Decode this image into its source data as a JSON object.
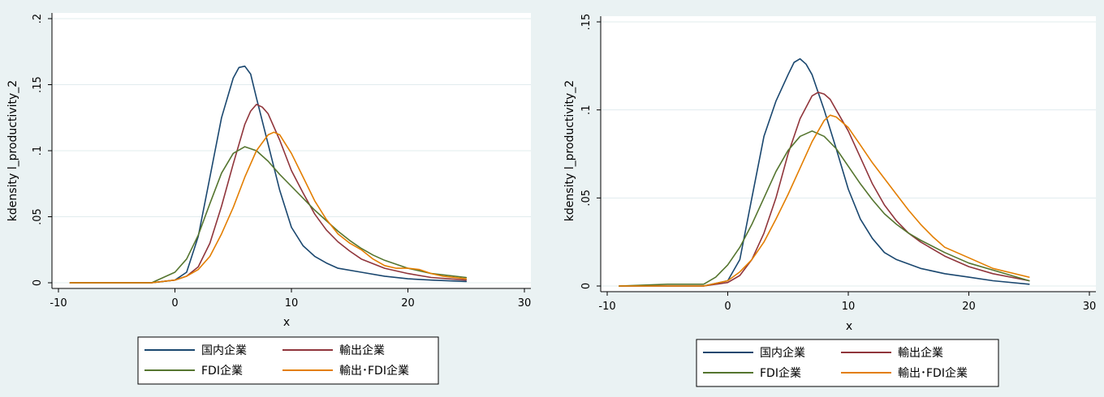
{
  "colors": {
    "background": "#eaf2f3",
    "plot_bg": "#ffffff",
    "grid": "#e1ecee",
    "domestic": "#1a476f",
    "export": "#90353b",
    "fdi": "#55752f",
    "export_fdi": "#e37e00"
  },
  "chart_data": [
    {
      "type": "line",
      "ylabel": "kdensity l_productivity_2",
      "xlabel": "x",
      "xlim": [
        -10,
        30
      ],
      "ylim": [
        0,
        0.2
      ],
      "xticks": [
        -10,
        0,
        10,
        20,
        30
      ],
      "xtick_labels": [
        "-10",
        "0",
        "10",
        "20",
        "30"
      ],
      "yticks": [
        0,
        0.05,
        0.1,
        0.15,
        0.2
      ],
      "ytick_labels": [
        "0",
        ".05",
        ".1",
        ".15",
        ".2"
      ],
      "legend_placement": "bottom",
      "series": [
        {
          "name": "国内企業",
          "key": "domestic",
          "x": [
            -9,
            -2,
            0,
            1,
            2,
            3,
            4,
            5,
            5.5,
            6,
            6.5,
            7,
            8,
            9,
            10,
            11,
            12,
            13,
            14,
            16,
            18,
            20,
            22,
            25
          ],
          "y": [
            0,
            0,
            0.002,
            0.008,
            0.035,
            0.08,
            0.125,
            0.155,
            0.163,
            0.164,
            0.158,
            0.14,
            0.105,
            0.07,
            0.042,
            0.028,
            0.02,
            0.015,
            0.011,
            0.008,
            0.005,
            0.003,
            0.002,
            0.001
          ]
        },
        {
          "name": "輸出企業",
          "key": "export",
          "x": [
            -9,
            -2,
            0,
            1,
            2,
            3,
            4,
            5,
            6,
            6.5,
            7,
            7.5,
            8,
            9,
            10,
            11,
            12,
            13,
            14,
            15,
            16,
            18,
            20,
            22,
            25
          ],
          "y": [
            0,
            0,
            0.002,
            0.005,
            0.012,
            0.03,
            0.058,
            0.09,
            0.12,
            0.13,
            0.135,
            0.133,
            0.128,
            0.108,
            0.085,
            0.068,
            0.052,
            0.04,
            0.031,
            0.024,
            0.018,
            0.011,
            0.007,
            0.004,
            0.002
          ]
        },
        {
          "name": "FDI企業",
          "key": "fdi",
          "x": [
            -9,
            -2,
            0,
            1,
            2,
            3,
            4,
            5,
            6,
            7,
            8,
            9,
            10,
            11,
            12,
            13,
            14,
            15,
            16,
            17,
            18,
            20,
            22,
            25
          ],
          "y": [
            0,
            0,
            0.008,
            0.018,
            0.036,
            0.06,
            0.083,
            0.098,
            0.103,
            0.1,
            0.092,
            0.082,
            0.073,
            0.064,
            0.055,
            0.047,
            0.039,
            0.032,
            0.026,
            0.021,
            0.017,
            0.011,
            0.007,
            0.004
          ]
        },
        {
          "name": "輸出･FDI企業",
          "key": "export_fdi",
          "x": [
            -9,
            -2,
            0,
            1,
            2,
            3,
            4,
            5,
            6,
            7,
            8,
            8.5,
            9,
            10,
            11,
            12,
            13,
            14,
            15,
            16,
            17,
            18,
            19,
            20,
            21,
            22,
            23,
            25
          ],
          "y": [
            0,
            0,
            0.002,
            0.005,
            0.01,
            0.02,
            0.037,
            0.057,
            0.08,
            0.1,
            0.112,
            0.114,
            0.112,
            0.098,
            0.08,
            0.062,
            0.048,
            0.037,
            0.03,
            0.025,
            0.018,
            0.013,
            0.011,
            0.011,
            0.01,
            0.007,
            0.005,
            0.003
          ]
        }
      ]
    },
    {
      "type": "line",
      "ylabel": "kdensity l_productivity_2",
      "xlabel": "x",
      "xlim": [
        -10,
        30
      ],
      "ylim": [
        0,
        0.15
      ],
      "xticks": [
        -10,
        0,
        10,
        20,
        30
      ],
      "xtick_labels": [
        "-10",
        "0",
        "10",
        "20",
        "30"
      ],
      "yticks": [
        0,
        0.05,
        0.1,
        0.15
      ],
      "ytick_labels": [
        "0",
        ".05",
        ".1",
        ".15"
      ],
      "legend_placement": "bottom",
      "series": [
        {
          "name": "国内企業",
          "key": "domestic",
          "x": [
            -9,
            -2,
            0,
            1,
            2,
            3,
            4,
            5,
            5.5,
            6,
            6.5,
            7,
            8,
            9,
            10,
            11,
            12,
            13,
            14,
            16,
            18,
            20,
            22,
            25
          ],
          "y": [
            0,
            0,
            0.003,
            0.015,
            0.05,
            0.085,
            0.105,
            0.12,
            0.127,
            0.129,
            0.126,
            0.12,
            0.1,
            0.078,
            0.055,
            0.038,
            0.027,
            0.019,
            0.015,
            0.01,
            0.007,
            0.005,
            0.003,
            0.001
          ]
        },
        {
          "name": "輸出企業",
          "key": "export",
          "x": [
            -9,
            -2,
            0,
            1,
            2,
            3,
            4,
            5,
            6,
            7,
            7.5,
            8,
            8.5,
            9,
            10,
            11,
            12,
            13,
            14,
            15,
            16,
            18,
            20,
            22,
            25
          ],
          "y": [
            0,
            0,
            0.002,
            0.006,
            0.015,
            0.03,
            0.05,
            0.075,
            0.095,
            0.108,
            0.11,
            0.109,
            0.106,
            0.1,
            0.088,
            0.073,
            0.058,
            0.046,
            0.037,
            0.03,
            0.025,
            0.017,
            0.011,
            0.007,
            0.003
          ]
        },
        {
          "name": "FDI企業",
          "key": "fdi",
          "x": [
            -9,
            -5,
            -2,
            -1,
            0,
            1,
            2,
            3,
            4,
            5,
            6,
            7,
            8,
            9,
            10,
            11,
            12,
            13,
            14,
            15,
            16,
            18,
            20,
            22,
            25
          ],
          "y": [
            0,
            0.001,
            0.001,
            0.005,
            0.012,
            0.022,
            0.035,
            0.05,
            0.065,
            0.077,
            0.085,
            0.088,
            0.085,
            0.078,
            0.068,
            0.058,
            0.049,
            0.041,
            0.035,
            0.03,
            0.026,
            0.019,
            0.013,
            0.009,
            0.003
          ]
        },
        {
          "name": "輸出･FDI企業",
          "key": "export_fdi",
          "x": [
            -9,
            -2,
            0,
            1,
            2,
            3,
            4,
            5,
            6,
            7,
            8,
            8.5,
            9,
            10,
            11,
            12,
            13,
            14,
            15,
            16,
            17,
            18,
            20,
            22,
            25
          ],
          "y": [
            0,
            0,
            0.003,
            0.008,
            0.015,
            0.025,
            0.038,
            0.052,
            0.067,
            0.082,
            0.094,
            0.097,
            0.096,
            0.09,
            0.08,
            0.07,
            0.061,
            0.052,
            0.043,
            0.035,
            0.028,
            0.022,
            0.016,
            0.01,
            0.005
          ]
        }
      ]
    }
  ]
}
